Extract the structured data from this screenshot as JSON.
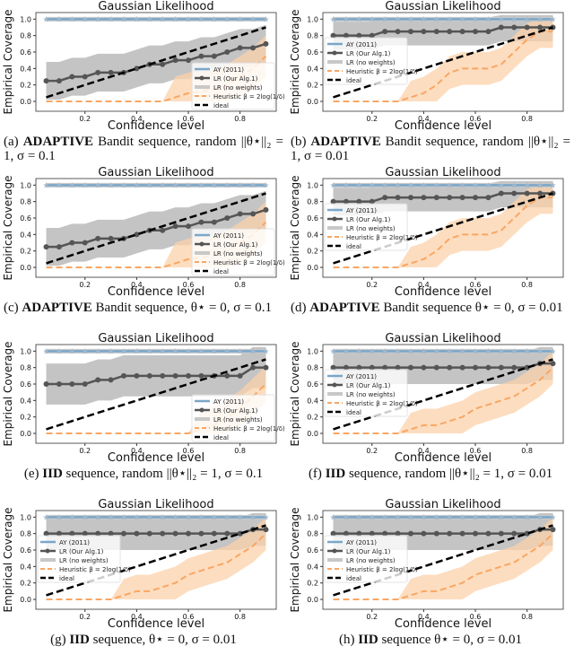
{
  "chart_data": [
    {
      "id": "a",
      "type": "line",
      "title": "Gaussian Likelihood",
      "xlabel": "Confidence level",
      "ylabel": "Empirical Coverage",
      "xlim": [
        0.01,
        0.94
      ],
      "ylim": [
        -0.12,
        1.08
      ],
      "xticks": [
        0.2,
        0.4,
        0.6,
        0.8
      ],
      "yticks": [
        0.0,
        0.2,
        0.4,
        0.6,
        0.8,
        1.0
      ],
      "legend": "lower-right",
      "caption": {
        "label": "(a)",
        "bold": "ADAPTIVE",
        "text": "Bandit sequence, random ||θ⋆||₂ = 1, σ = 0.1"
      },
      "x": [
        0.05,
        0.1,
        0.15,
        0.2,
        0.25,
        0.3,
        0.35,
        0.4,
        0.45,
        0.5,
        0.55,
        0.6,
        0.65,
        0.7,
        0.75,
        0.8,
        0.85,
        0.9
      ],
      "ay": [
        1,
        1,
        1,
        1,
        1,
        1,
        1,
        1,
        1,
        1,
        1,
        1,
        1,
        1,
        1,
        1,
        1,
        1
      ],
      "lr": [
        0.25,
        0.25,
        0.3,
        0.3,
        0.35,
        0.35,
        0.35,
        0.4,
        0.45,
        0.45,
        0.5,
        0.5,
        0.55,
        0.55,
        0.6,
        0.65,
        0.65,
        0.7
      ],
      "lr_band_width": 0.23,
      "heur": [
        0,
        0,
        0,
        0,
        0,
        0,
        0,
        0,
        0,
        0,
        0.05,
        0.1,
        0.12,
        0.15,
        0.2,
        0.3,
        0.4,
        0.55
      ],
      "heur_band_width": 0.25
    },
    {
      "id": "b",
      "type": "line",
      "title": "Gaussian Likelihood",
      "xlabel": "Confidence level",
      "ylabel": "Empirical Coverage",
      "xlim": [
        0.01,
        0.94
      ],
      "ylim": [
        -0.12,
        1.08
      ],
      "xticks": [
        0.2,
        0.4,
        0.6,
        0.8
      ],
      "yticks": [
        0.0,
        0.2,
        0.4,
        0.6,
        0.8,
        1.0
      ],
      "legend": "center-left",
      "caption": {
        "label": "(b)",
        "bold": "ADAPTIVE",
        "text": "Bandit sequence, random ||θ⋆||₂ = 1, σ = 0.01"
      },
      "x": [
        0.05,
        0.1,
        0.15,
        0.2,
        0.25,
        0.3,
        0.35,
        0.4,
        0.45,
        0.5,
        0.55,
        0.6,
        0.65,
        0.7,
        0.75,
        0.8,
        0.85,
        0.9
      ],
      "ay": [
        1,
        1,
        1,
        1,
        1,
        1,
        1,
        1,
        1,
        1,
        1,
        1,
        1,
        1,
        1,
        1,
        1,
        1
      ],
      "lr": [
        0.8,
        0.8,
        0.8,
        0.8,
        0.85,
        0.85,
        0.85,
        0.85,
        0.85,
        0.85,
        0.85,
        0.85,
        0.85,
        0.9,
        0.9,
        0.9,
        0.9,
        0.9
      ],
      "lr_band_width": 0.17,
      "heur": [
        0,
        0,
        0,
        0,
        0,
        0,
        0.05,
        0.1,
        0.2,
        0.35,
        0.4,
        0.4,
        0.4,
        0.45,
        0.6,
        0.75,
        0.85,
        0.85
      ],
      "heur_band_width": 0.2
    },
    {
      "id": "c",
      "type": "line",
      "title": "Gaussian Likelihood",
      "xlabel": "Confidence level",
      "ylabel": "Empirical Coverage",
      "xlim": [
        0.01,
        0.94
      ],
      "ylim": [
        -0.12,
        1.08
      ],
      "xticks": [
        0.2,
        0.4,
        0.6,
        0.8
      ],
      "yticks": [
        0.0,
        0.2,
        0.4,
        0.6,
        0.8,
        1.0
      ],
      "legend": "lower-right",
      "caption": {
        "label": "(c)",
        "bold": "ADAPTIVE",
        "text": "Bandit sequence, θ⋆ = 0, σ = 0.1"
      },
      "x": [
        0.05,
        0.1,
        0.15,
        0.2,
        0.25,
        0.3,
        0.35,
        0.4,
        0.45,
        0.5,
        0.55,
        0.6,
        0.65,
        0.7,
        0.75,
        0.8,
        0.85,
        0.9
      ],
      "ay": [
        1,
        1,
        1,
        1,
        1,
        1,
        1,
        1,
        1,
        1,
        1,
        1,
        1,
        1,
        1,
        1,
        1,
        1
      ],
      "lr": [
        0.25,
        0.25,
        0.3,
        0.3,
        0.35,
        0.35,
        0.35,
        0.4,
        0.45,
        0.45,
        0.5,
        0.5,
        0.55,
        0.55,
        0.6,
        0.65,
        0.65,
        0.7
      ],
      "lr_band_width": 0.23,
      "heur": [
        0,
        0,
        0,
        0,
        0,
        0,
        0,
        0,
        0,
        0,
        0.05,
        0.1,
        0.12,
        0.15,
        0.2,
        0.3,
        0.4,
        0.55
      ],
      "heur_band_width": 0.25
    },
    {
      "id": "d",
      "type": "line",
      "title": "Gaussian Likelihood",
      "xlabel": "Confidence level",
      "ylabel": "Empirical Coverage",
      "xlim": [
        0.01,
        0.94
      ],
      "ylim": [
        -0.12,
        1.08
      ],
      "xticks": [
        0.2,
        0.4,
        0.6,
        0.8
      ],
      "yticks": [
        0.0,
        0.2,
        0.4,
        0.6,
        0.8,
        1.0
      ],
      "legend": "center-left",
      "caption": {
        "label": "(d)",
        "bold": "ADAPTIVE",
        "text": "Bandit sequence θ⋆ = 0, σ = 0.01"
      },
      "x": [
        0.05,
        0.1,
        0.15,
        0.2,
        0.25,
        0.3,
        0.35,
        0.4,
        0.45,
        0.5,
        0.55,
        0.6,
        0.65,
        0.7,
        0.75,
        0.8,
        0.85,
        0.9
      ],
      "ay": [
        1,
        1,
        1,
        1,
        1,
        1,
        1,
        1,
        1,
        1,
        1,
        1,
        1,
        1,
        1,
        1,
        1,
        1
      ],
      "lr": [
        0.8,
        0.8,
        0.8,
        0.8,
        0.85,
        0.85,
        0.85,
        0.85,
        0.85,
        0.85,
        0.85,
        0.85,
        0.85,
        0.9,
        0.9,
        0.9,
        0.9,
        0.9
      ],
      "lr_band_width": 0.17,
      "heur": [
        0,
        0,
        0,
        0,
        0,
        0,
        0.05,
        0.1,
        0.2,
        0.35,
        0.4,
        0.4,
        0.4,
        0.45,
        0.6,
        0.75,
        0.85,
        0.85
      ],
      "heur_band_width": 0.2
    },
    {
      "id": "e",
      "type": "line",
      "title": "Gaussian Likelihood",
      "xlabel": "Confidence level",
      "ylabel": "Empirical Coverage",
      "xlim": [
        0.01,
        0.94
      ],
      "ylim": [
        -0.12,
        1.08
      ],
      "xticks": [
        0.2,
        0.4,
        0.6,
        0.8
      ],
      "yticks": [
        0.0,
        0.2,
        0.4,
        0.6,
        0.8,
        1.0
      ],
      "legend": "lower-right",
      "caption": {
        "label": "(e)",
        "bold": "IID",
        "text": "sequence, random ||θ⋆||₂ = 1, σ = 0.1"
      },
      "x": [
        0.05,
        0.1,
        0.15,
        0.2,
        0.25,
        0.3,
        0.35,
        0.4,
        0.45,
        0.5,
        0.55,
        0.6,
        0.65,
        0.7,
        0.75,
        0.8,
        0.85,
        0.9
      ],
      "ay": [
        1,
        1,
        1,
        1,
        1,
        1,
        1,
        1,
        1,
        1,
        1,
        1,
        1,
        1,
        1,
        1,
        1,
        1
      ],
      "lr": [
        0.6,
        0.6,
        0.6,
        0.6,
        0.65,
        0.65,
        0.7,
        0.7,
        0.7,
        0.7,
        0.7,
        0.7,
        0.7,
        0.7,
        0.7,
        0.7,
        0.8,
        0.8
      ],
      "lr_band_width": 0.25,
      "heur": [
        0,
        0,
        0,
        0,
        0,
        0,
        0,
        0,
        0,
        0,
        0,
        0,
        0.05,
        0.1,
        0.2,
        0.3,
        0.45,
        0.6
      ],
      "heur_band_width": 0.22
    },
    {
      "id": "f",
      "type": "line",
      "title": "Gaussian Likelihood",
      "xlabel": "Confidence level",
      "ylabel": "Empirical Coverage",
      "xlim": [
        0.01,
        0.94
      ],
      "ylim": [
        -0.12,
        1.08
      ],
      "xticks": [
        0.2,
        0.4,
        0.6,
        0.8
      ],
      "yticks": [
        0.0,
        0.2,
        0.4,
        0.6,
        0.8,
        1.0
      ],
      "legend": "center-left",
      "caption": {
        "label": "(f)",
        "bold": "IID",
        "text": "sequence, random ||θ⋆||₂ = 1, σ = 0.01"
      },
      "x": [
        0.05,
        0.1,
        0.15,
        0.2,
        0.25,
        0.3,
        0.35,
        0.4,
        0.45,
        0.5,
        0.55,
        0.6,
        0.65,
        0.7,
        0.75,
        0.8,
        0.85,
        0.9
      ],
      "ay": [
        1,
        1,
        1,
        1,
        1,
        1,
        1,
        1,
        1,
        1,
        1,
        1,
        1,
        1,
        1,
        1,
        1,
        1
      ],
      "lr": [
        0.8,
        0.8,
        0.8,
        0.8,
        0.8,
        0.8,
        0.8,
        0.8,
        0.8,
        0.8,
        0.8,
        0.8,
        0.8,
        0.8,
        0.8,
        0.8,
        0.85,
        0.85
      ],
      "lr_band_width": 0.2,
      "heur": [
        0,
        0,
        0,
        0,
        0,
        0,
        0.05,
        0.1,
        0.1,
        0.15,
        0.2,
        0.3,
        0.35,
        0.4,
        0.45,
        0.55,
        0.65,
        0.8
      ],
      "heur_band_width": 0.2
    },
    {
      "id": "g",
      "type": "line",
      "title": "Gaussian Likelihood",
      "xlabel": "Confidence level",
      "ylabel": "Empirical Coverage",
      "xlim": [
        0.01,
        0.94
      ],
      "ylim": [
        -0.12,
        1.08
      ],
      "xticks": [
        0.2,
        0.4,
        0.6,
        0.8
      ],
      "yticks": [
        0.0,
        0.2,
        0.4,
        0.6,
        0.8,
        1.0
      ],
      "legend": "center-left",
      "caption": {
        "label": "(g)",
        "bold": "IID",
        "text": "sequence, θ⋆ = 0, σ = 0.01"
      },
      "x": [
        0.05,
        0.1,
        0.15,
        0.2,
        0.25,
        0.3,
        0.35,
        0.4,
        0.45,
        0.5,
        0.55,
        0.6,
        0.65,
        0.7,
        0.75,
        0.8,
        0.85,
        0.9
      ],
      "ay": [
        1,
        1,
        1,
        1,
        1,
        1,
        1,
        1,
        1,
        1,
        1,
        1,
        1,
        1,
        1,
        1,
        1,
        1
      ],
      "lr": [
        0.8,
        0.8,
        0.8,
        0.8,
        0.8,
        0.8,
        0.8,
        0.8,
        0.8,
        0.8,
        0.8,
        0.8,
        0.8,
        0.8,
        0.8,
        0.8,
        0.85,
        0.85
      ],
      "lr_band_width": 0.2,
      "heur": [
        0,
        0,
        0,
        0,
        0,
        0,
        0.05,
        0.1,
        0.1,
        0.15,
        0.2,
        0.3,
        0.35,
        0.4,
        0.45,
        0.55,
        0.65,
        0.8
      ],
      "heur_band_width": 0.2
    },
    {
      "id": "h",
      "type": "line",
      "title": "Gaussian Likelihood",
      "xlabel": "Confidence level",
      "ylabel": "Empirical Coverage",
      "xlim": [
        0.01,
        0.94
      ],
      "ylim": [
        -0.12,
        1.08
      ],
      "xticks": [
        0.2,
        0.4,
        0.6,
        0.8
      ],
      "yticks": [
        0.0,
        0.2,
        0.4,
        0.6,
        0.8,
        1.0
      ],
      "legend": "center-left",
      "caption": {
        "label": "(h)",
        "bold": "IID",
        "text": "sequence θ⋆ = 0, σ = 0.01"
      },
      "x": [
        0.05,
        0.1,
        0.15,
        0.2,
        0.25,
        0.3,
        0.35,
        0.4,
        0.45,
        0.5,
        0.55,
        0.6,
        0.65,
        0.7,
        0.75,
        0.8,
        0.85,
        0.9
      ],
      "ay": [
        1,
        1,
        1,
        1,
        1,
        1,
        1,
        1,
        1,
        1,
        1,
        1,
        1,
        1,
        1,
        1,
        1,
        1
      ],
      "lr": [
        0.8,
        0.8,
        0.8,
        0.8,
        0.8,
        0.8,
        0.8,
        0.8,
        0.8,
        0.8,
        0.8,
        0.8,
        0.8,
        0.8,
        0.8,
        0.8,
        0.85,
        0.85
      ],
      "lr_band_width": 0.2,
      "heur": [
        0,
        0,
        0,
        0,
        0,
        0,
        0.05,
        0.1,
        0.1,
        0.15,
        0.2,
        0.3,
        0.35,
        0.4,
        0.45,
        0.55,
        0.65,
        0.8
      ],
      "heur_band_width": 0.2
    }
  ],
  "legend_entries": [
    "AY (2011)",
    "LR (Our Alg.1)",
    "LR (no weights)",
    "Heuristic β = 2log(1/δ)",
    "ideal"
  ],
  "colors": {
    "ay": "#7aa6c9",
    "lr": "#555555",
    "lr_band": "#b0b0b0",
    "lr_nw": "#c8c8c8",
    "heur": "#f9a662",
    "heur_band": "#fcd2ab",
    "ideal": "#000000"
  }
}
